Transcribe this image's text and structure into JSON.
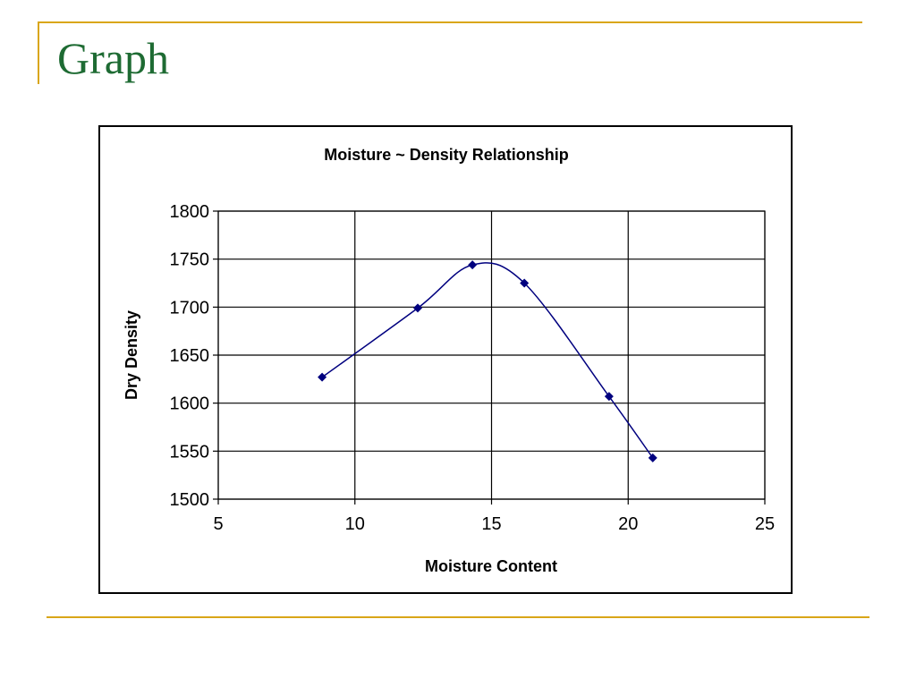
{
  "slide": {
    "title": "Graph",
    "accent_color": "#d9a619",
    "title_color": "#1e6b33"
  },
  "chart_data": {
    "type": "scatter",
    "title": "Moisture ~ Density Relationship",
    "xlabel": "Moisture Content",
    "ylabel": "Dry Density",
    "xlim": [
      5,
      25
    ],
    "ylim": [
      1500,
      1800
    ],
    "xticks": [
      5,
      10,
      15,
      20,
      25
    ],
    "yticks": [
      1500,
      1550,
      1600,
      1650,
      1700,
      1750,
      1800
    ],
    "grid": true,
    "legend": "none",
    "line_style": "smoothed",
    "series_color": "#00007f",
    "series": [
      {
        "x": [
          8.8,
          12.3,
          14.3,
          16.2,
          19.3,
          20.9
        ],
        "y": [
          1627,
          1699,
          1744,
          1725,
          1607,
          1543
        ]
      }
    ]
  }
}
